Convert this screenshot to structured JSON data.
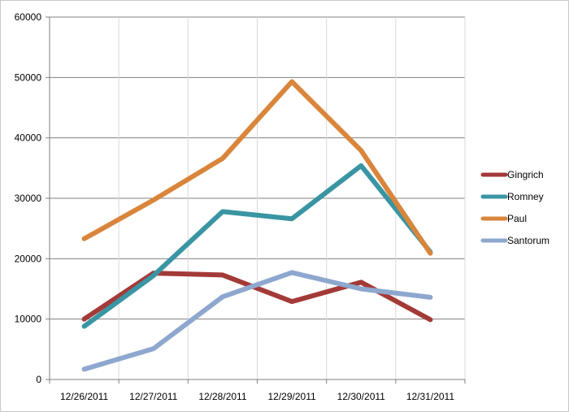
{
  "chart_data": {
    "type": "line",
    "title": "",
    "xlabel": "",
    "ylabel": "",
    "categories": [
      "12/26/2011",
      "12/27/2011",
      "12/28/2011",
      "12/29/2011",
      "12/30/2011",
      "12/31/2011"
    ],
    "ylim": [
      0,
      60000
    ],
    "yticks": [
      0,
      10000,
      20000,
      30000,
      40000,
      50000,
      60000
    ],
    "ytick_labels": [
      "0",
      "10000",
      "20000",
      "30000",
      "40000",
      "50000",
      "60000"
    ],
    "grid": {
      "horizontal": true,
      "vertical": true,
      "color": "#808080"
    },
    "legend_position": "right",
    "series": [
      {
        "name": "Gingrich",
        "color": "#A33A38",
        "values": [
          10000,
          17600,
          17300,
          12900,
          16100,
          9900
        ]
      },
      {
        "name": "Romney",
        "color": "#3A95A3",
        "values": [
          8800,
          17200,
          27800,
          26600,
          35400,
          21100
        ]
      },
      {
        "name": "Paul",
        "color": "#D9853B",
        "values": [
          23300,
          29700,
          36600,
          49300,
          37900,
          20900
        ]
      },
      {
        "name": "Santorum",
        "color": "#8EA7CF",
        "values": [
          1700,
          5100,
          13700,
          17700,
          15000,
          13600
        ]
      }
    ]
  }
}
